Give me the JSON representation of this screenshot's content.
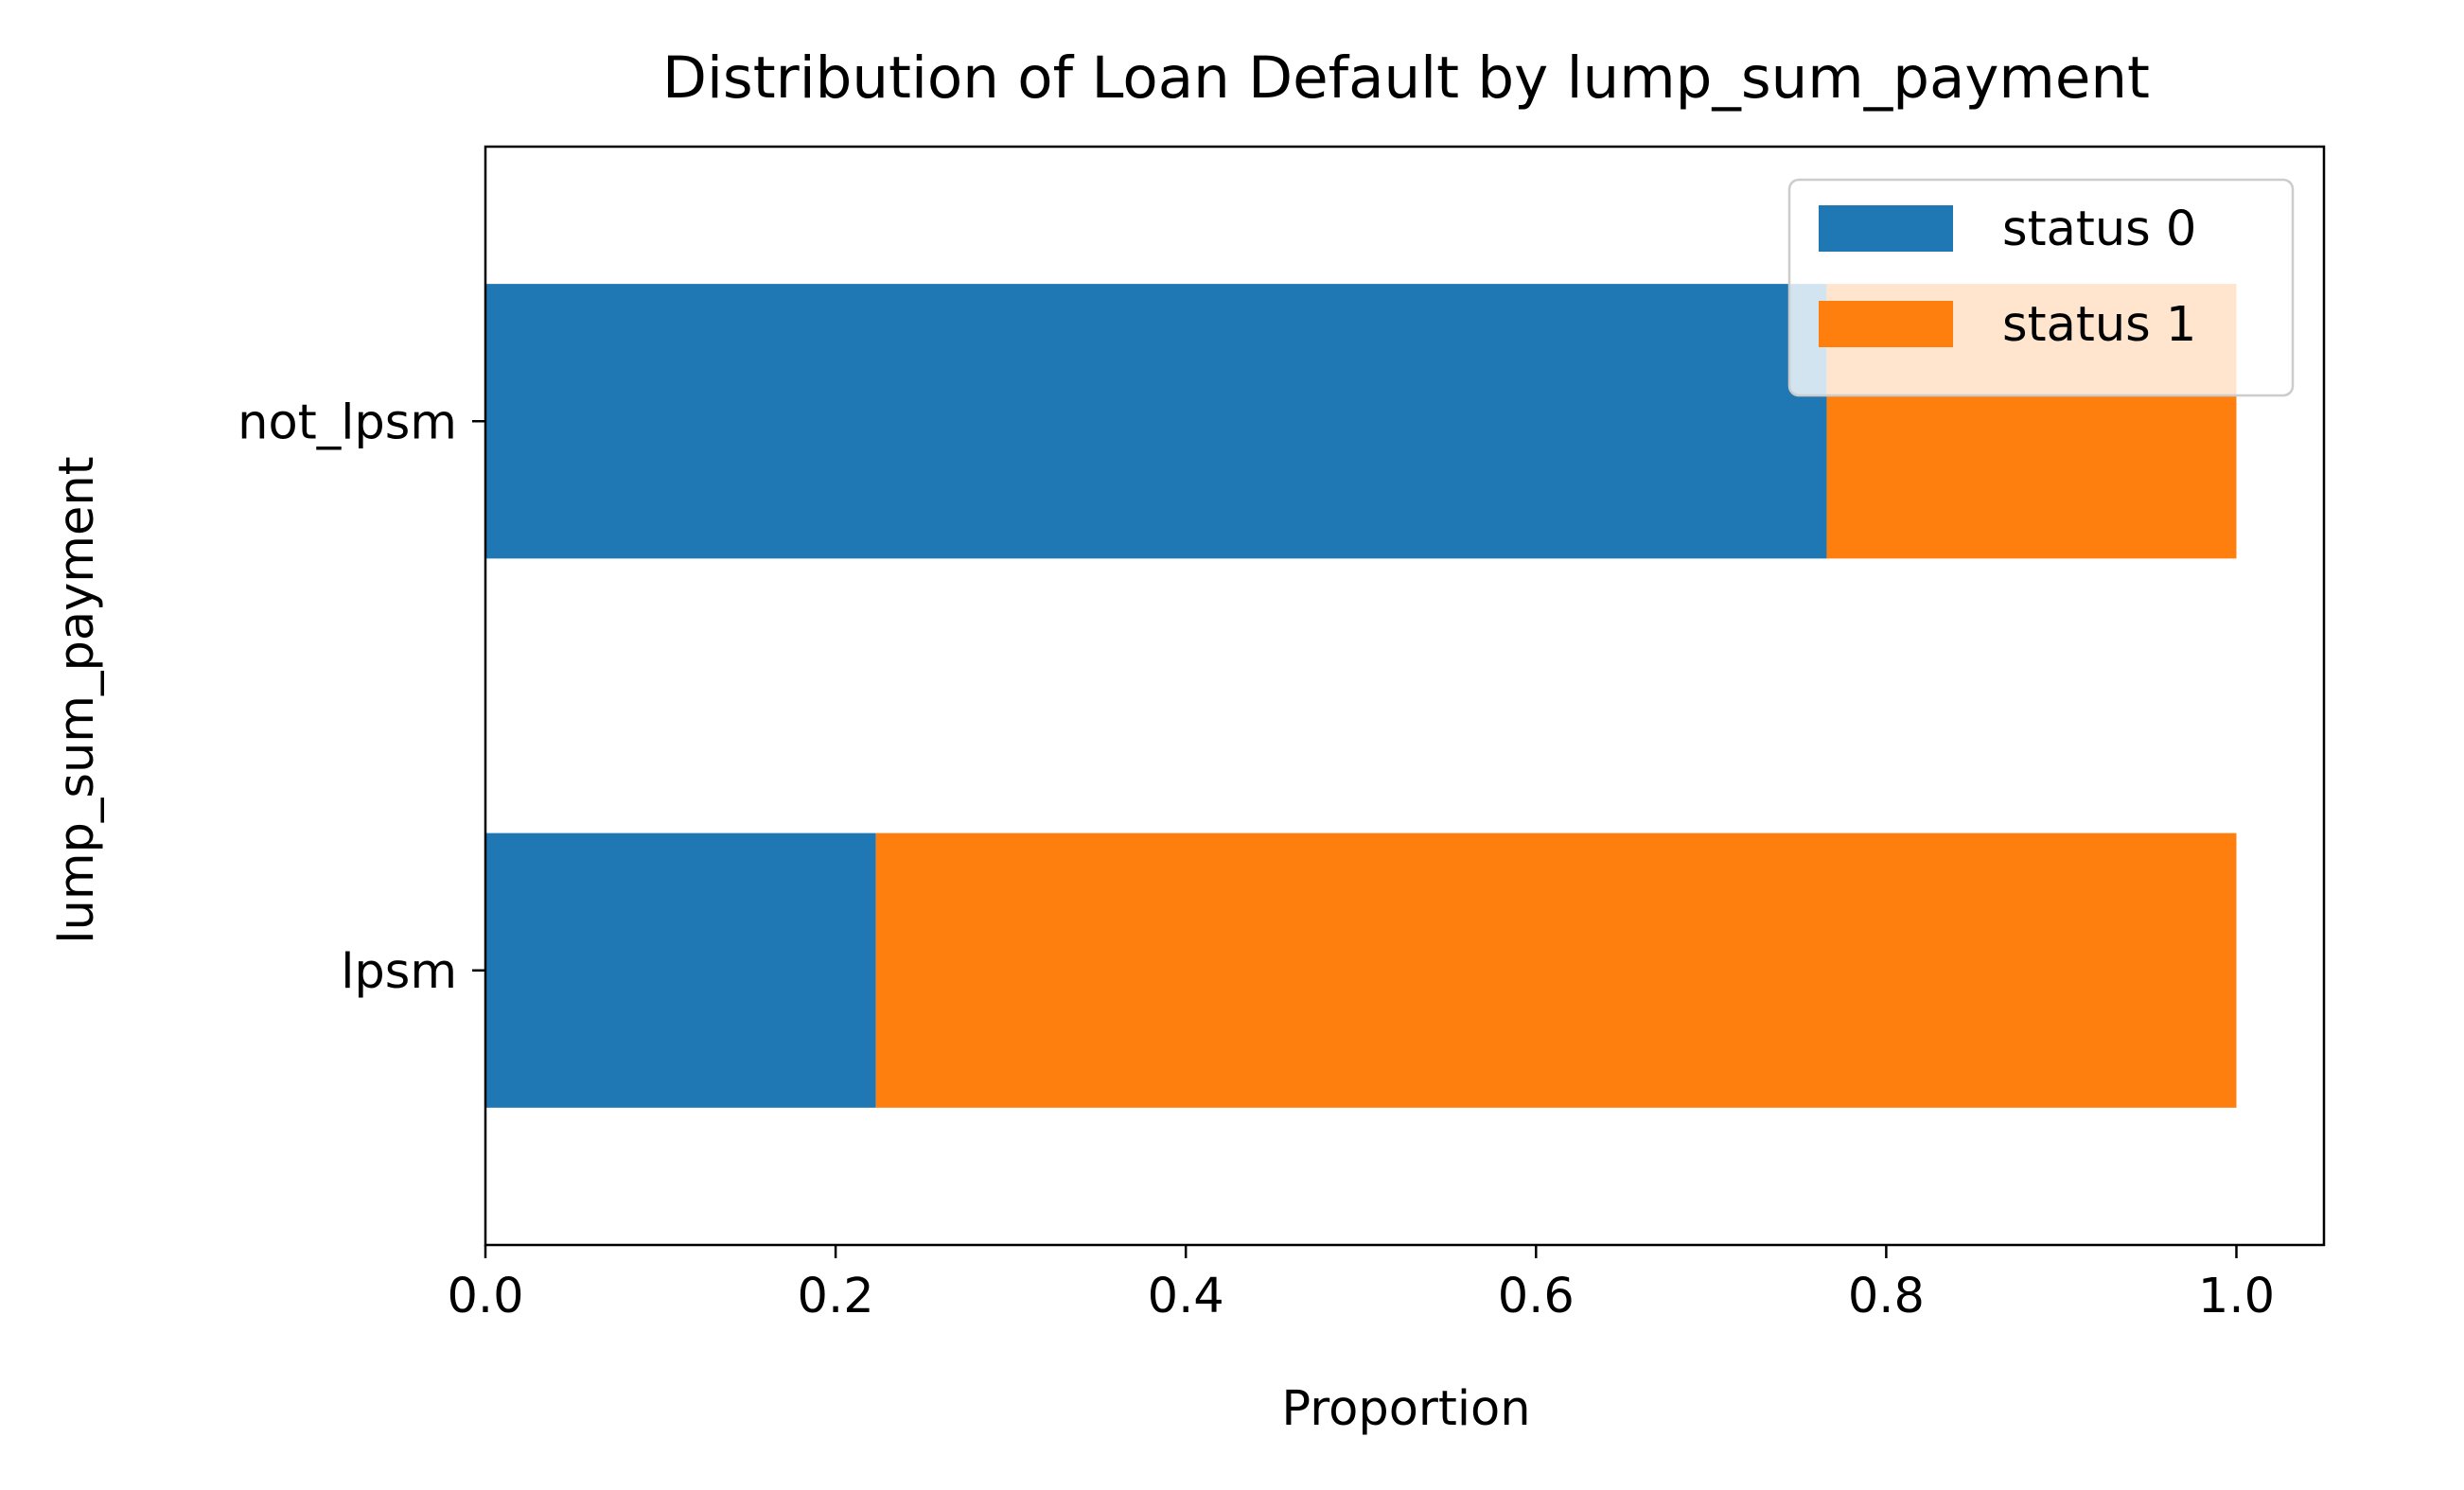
{
  "chart_data": {
    "type": "bar",
    "orientation": "horizontal",
    "stacked": true,
    "title": "Distribution of Loan Default by lump_sum_payment",
    "xlabel": "Proportion",
    "ylabel": "lump_sum_payment",
    "categories": [
      "not_lpsm",
      "lpsm"
    ],
    "series": [
      {
        "name": "status 0",
        "color": "#1f77b4",
        "values": [
          0.766,
          0.223
        ]
      },
      {
        "name": "status 1",
        "color": "#ff7f0e",
        "values": [
          0.234,
          0.777
        ]
      }
    ],
    "xlim": [
      0,
      1.05
    ],
    "xticks": [
      0.0,
      0.2,
      0.4,
      0.6,
      0.8,
      1.0
    ],
    "xtick_labels": [
      "0.0",
      "0.2",
      "0.4",
      "0.6",
      "0.8",
      "1.0"
    ],
    "grid": false,
    "legend": {
      "position": "upper right"
    }
  }
}
